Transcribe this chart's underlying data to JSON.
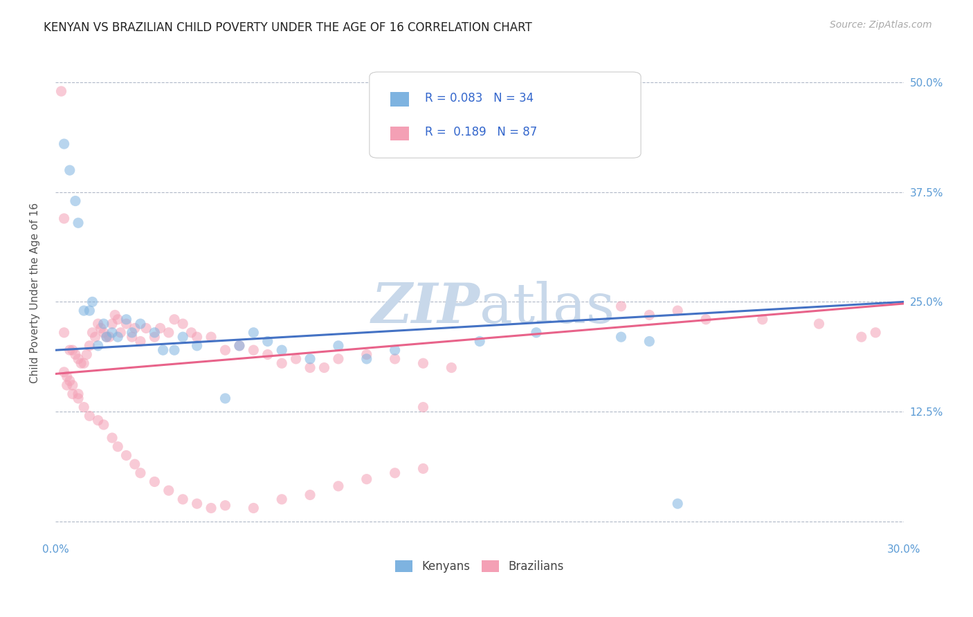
{
  "title": "KENYAN VS BRAZILIAN CHILD POVERTY UNDER THE AGE OF 16 CORRELATION CHART",
  "source": "Source: ZipAtlas.com",
  "ylabel": "Child Poverty Under the Age of 16",
  "xlim": [
    0.0,
    0.3
  ],
  "ylim": [
    -0.02,
    0.54
  ],
  "kenyan_R": 0.083,
  "kenyan_N": 34,
  "brazilian_R": 0.189,
  "brazilian_N": 87,
  "kenyan_color": "#7eb3e0",
  "brazilian_color": "#f4a0b5",
  "kenyan_line_color": "#4472c4",
  "brazilian_line_color": "#e8638a",
  "legend_color": "#3366cc",
  "background_color": "#ffffff",
  "grid_color": "#b0b8c8",
  "watermark_color": "#c8d8ea",
  "title_color": "#222222",
  "tick_color": "#5b9bd5",
  "marker_size": 120,
  "marker_alpha": 0.55,
  "line_width": 2.2,
  "kenyan_x": [
    0.003,
    0.005,
    0.007,
    0.008,
    0.01,
    0.012,
    0.013,
    0.015,
    0.017,
    0.018,
    0.02,
    0.022,
    0.025,
    0.027,
    0.03,
    0.035,
    0.038,
    0.042,
    0.045,
    0.05,
    0.06,
    0.065,
    0.07,
    0.075,
    0.08,
    0.09,
    0.1,
    0.11,
    0.12,
    0.15,
    0.17,
    0.2,
    0.21,
    0.22
  ],
  "kenyan_y": [
    0.43,
    0.4,
    0.365,
    0.34,
    0.24,
    0.24,
    0.25,
    0.2,
    0.225,
    0.21,
    0.215,
    0.21,
    0.23,
    0.215,
    0.225,
    0.215,
    0.195,
    0.195,
    0.21,
    0.2,
    0.14,
    0.2,
    0.215,
    0.205,
    0.195,
    0.185,
    0.2,
    0.185,
    0.195,
    0.205,
    0.215,
    0.21,
    0.205,
    0.02
  ],
  "brazilian_x": [
    0.003,
    0.005,
    0.006,
    0.007,
    0.008,
    0.009,
    0.01,
    0.011,
    0.012,
    0.013,
    0.014,
    0.015,
    0.016,
    0.017,
    0.018,
    0.019,
    0.02,
    0.021,
    0.022,
    0.023,
    0.025,
    0.027,
    0.028,
    0.03,
    0.032,
    0.035,
    0.037,
    0.04,
    0.042,
    0.045,
    0.048,
    0.05,
    0.055,
    0.06,
    0.065,
    0.07,
    0.075,
    0.08,
    0.085,
    0.09,
    0.095,
    0.1,
    0.11,
    0.12,
    0.13,
    0.14,
    0.003,
    0.004,
    0.005,
    0.006,
    0.008,
    0.01,
    0.012,
    0.015,
    0.017,
    0.02,
    0.022,
    0.025,
    0.028,
    0.03,
    0.035,
    0.04,
    0.045,
    0.05,
    0.055,
    0.06,
    0.07,
    0.08,
    0.09,
    0.1,
    0.11,
    0.12,
    0.13,
    0.2,
    0.21,
    0.22,
    0.23,
    0.25,
    0.27,
    0.285,
    0.29,
    0.003,
    0.13,
    0.002,
    0.004,
    0.006,
    0.008
  ],
  "brazilian_y": [
    0.215,
    0.195,
    0.195,
    0.19,
    0.185,
    0.18,
    0.18,
    0.19,
    0.2,
    0.215,
    0.21,
    0.225,
    0.22,
    0.215,
    0.21,
    0.21,
    0.225,
    0.235,
    0.23,
    0.215,
    0.225,
    0.21,
    0.22,
    0.205,
    0.22,
    0.21,
    0.22,
    0.215,
    0.23,
    0.225,
    0.215,
    0.21,
    0.21,
    0.195,
    0.2,
    0.195,
    0.19,
    0.18,
    0.185,
    0.175,
    0.175,
    0.185,
    0.19,
    0.185,
    0.18,
    0.175,
    0.17,
    0.155,
    0.16,
    0.145,
    0.14,
    0.13,
    0.12,
    0.115,
    0.11,
    0.095,
    0.085,
    0.075,
    0.065,
    0.055,
    0.045,
    0.035,
    0.025,
    0.02,
    0.015,
    0.018,
    0.015,
    0.025,
    0.03,
    0.04,
    0.048,
    0.055,
    0.06,
    0.245,
    0.235,
    0.24,
    0.23,
    0.23,
    0.225,
    0.21,
    0.215,
    0.345,
    0.13,
    0.49,
    0.165,
    0.155,
    0.145
  ]
}
